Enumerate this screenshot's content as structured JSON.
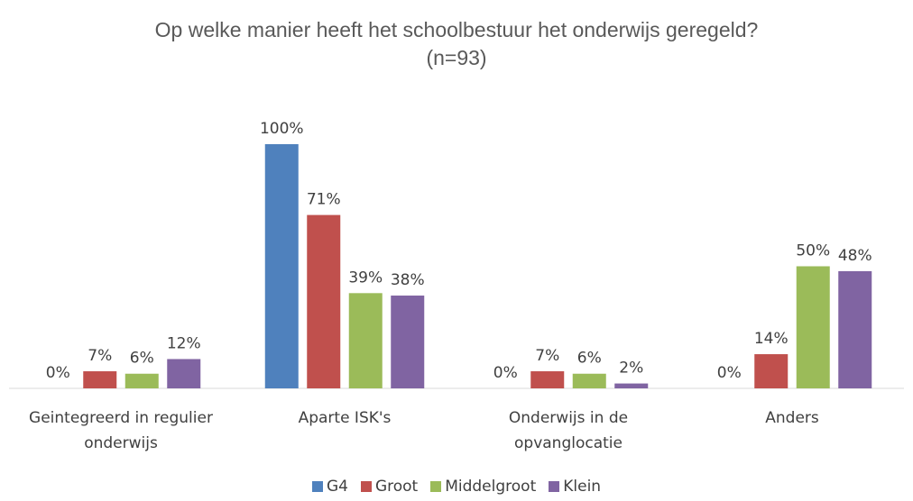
{
  "chart_data": {
    "type": "bar",
    "title": "Op welke manier heeft het schoolbestuur het onderwijs geregeld? (n=93)",
    "categories": [
      "Geintegreerd in regulier onderwijs",
      "Aparte ISK's",
      "Onderwijs in de opvanglocatie",
      "Anders"
    ],
    "series": [
      {
        "name": "G4",
        "color": "#4f81bd",
        "values": [
          0,
          100,
          0,
          0
        ],
        "value_labels": [
          "0%",
          "100%",
          "0%",
          "0%"
        ]
      },
      {
        "name": "Groot",
        "color": "#c0504d",
        "values": [
          7,
          71,
          7,
          14
        ],
        "value_labels": [
          "7%",
          "71%",
          "7%",
          "14%"
        ]
      },
      {
        "name": "Middelgroot",
        "color": "#9bbb59",
        "values": [
          6,
          39,
          6,
          50
        ],
        "value_labels": [
          "6%",
          "39%",
          "6%",
          "50%"
        ]
      },
      {
        "name": "Klein",
        "color": "#8064a2",
        "values": [
          12,
          38,
          2,
          48
        ],
        "value_labels": [
          "12%",
          "38%",
          "2%",
          "48%"
        ]
      }
    ],
    "ylim": [
      0,
      100
    ]
  }
}
